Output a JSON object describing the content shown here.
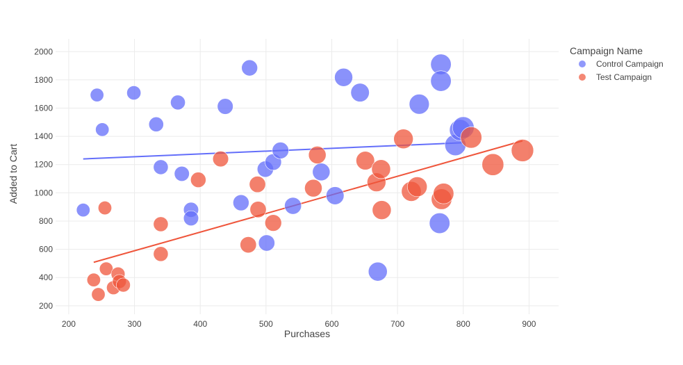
{
  "chart_data": {
    "type": "scatter",
    "xlabel": "Purchases",
    "ylabel": "Added to Cart",
    "xlim": [
      180,
      945
    ],
    "ylim": [
      140,
      2090
    ],
    "xticks": [
      200,
      300,
      400,
      500,
      600,
      700,
      800,
      900
    ],
    "yticks": [
      200,
      400,
      600,
      800,
      1000,
      1200,
      1400,
      1600,
      1800,
      2000
    ],
    "grid": true,
    "legend": {
      "title": "Campaign Name",
      "placement": "top-right"
    },
    "series": [
      {
        "name": "Control Campaign",
        "color": "#636efa",
        "trendline": {
          "x": [
            222,
            800
          ],
          "y": [
            1240,
            1355
          ]
        },
        "points": [
          {
            "x": 222,
            "y": 878,
            "size": 0.3
          },
          {
            "x": 243,
            "y": 1693,
            "size": 0.3
          },
          {
            "x": 251,
            "y": 1448,
            "size": 0.3
          },
          {
            "x": 299,
            "y": 1708,
            "size": 0.35
          },
          {
            "x": 333,
            "y": 1485,
            "size": 0.4
          },
          {
            "x": 340,
            "y": 1182,
            "size": 0.4
          },
          {
            "x": 366,
            "y": 1640,
            "size": 0.4
          },
          {
            "x": 372,
            "y": 1135,
            "size": 0.42
          },
          {
            "x": 386,
            "y": 880,
            "size": 0.42
          },
          {
            "x": 386,
            "y": 820,
            "size": 0.42
          },
          {
            "x": 438,
            "y": 1612,
            "size": 0.48
          },
          {
            "x": 462,
            "y": 930,
            "size": 0.5
          },
          {
            "x": 475,
            "y": 1885,
            "size": 0.5
          },
          {
            "x": 499,
            "y": 1168,
            "size": 0.52
          },
          {
            "x": 501,
            "y": 645,
            "size": 0.52
          },
          {
            "x": 511,
            "y": 1218,
            "size": 0.53
          },
          {
            "x": 522,
            "y": 1300,
            "size": 0.55
          },
          {
            "x": 541,
            "y": 908,
            "size": 0.57
          },
          {
            "x": 584,
            "y": 1148,
            "size": 0.62
          },
          {
            "x": 605,
            "y": 980,
            "size": 0.65
          },
          {
            "x": 618,
            "y": 1818,
            "size": 0.67
          },
          {
            "x": 643,
            "y": 1710,
            "size": 0.7
          },
          {
            "x": 670,
            "y": 442,
            "size": 0.73
          },
          {
            "x": 733,
            "y": 1628,
            "size": 0.82
          },
          {
            "x": 764,
            "y": 785,
            "size": 0.86
          },
          {
            "x": 766,
            "y": 1910,
            "size": 0.86
          },
          {
            "x": 766,
            "y": 1792,
            "size": 0.86
          },
          {
            "x": 788,
            "y": 1338,
            "size": 0.9
          },
          {
            "x": 795,
            "y": 1445,
            "size": 0.9
          },
          {
            "x": 800,
            "y": 1462,
            "size": 0.95
          }
        ]
      },
      {
        "name": "Test Campaign",
        "color": "#ef553b",
        "trendline": {
          "x": [
            238,
            890
          ],
          "y": [
            508,
            1368
          ]
        },
        "points": [
          {
            "x": 238,
            "y": 383,
            "size": 0.3
          },
          {
            "x": 245,
            "y": 280,
            "size": 0.3
          },
          {
            "x": 255,
            "y": 893,
            "size": 0.3
          },
          {
            "x": 257,
            "y": 462,
            "size": 0.3
          },
          {
            "x": 268,
            "y": 328,
            "size": 0.32
          },
          {
            "x": 275,
            "y": 425,
            "size": 0.33
          },
          {
            "x": 277,
            "y": 372,
            "size": 0.33
          },
          {
            "x": 283,
            "y": 347,
            "size": 0.34
          },
          {
            "x": 340,
            "y": 567,
            "size": 0.4
          },
          {
            "x": 340,
            "y": 778,
            "size": 0.4
          },
          {
            "x": 397,
            "y": 1092,
            "size": 0.45
          },
          {
            "x": 431,
            "y": 1240,
            "size": 0.48
          },
          {
            "x": 473,
            "y": 632,
            "size": 0.52
          },
          {
            "x": 487,
            "y": 1060,
            "size": 0.52
          },
          {
            "x": 488,
            "y": 882,
            "size": 0.52
          },
          {
            "x": 511,
            "y": 787,
            "size": 0.55
          },
          {
            "x": 572,
            "y": 1033,
            "size": 0.62
          },
          {
            "x": 578,
            "y": 1268,
            "size": 0.62
          },
          {
            "x": 651,
            "y": 1228,
            "size": 0.7
          },
          {
            "x": 668,
            "y": 1075,
            "size": 0.72
          },
          {
            "x": 675,
            "y": 1168,
            "size": 0.73
          },
          {
            "x": 676,
            "y": 878,
            "size": 0.73
          },
          {
            "x": 709,
            "y": 1382,
            "size": 0.78
          },
          {
            "x": 721,
            "y": 1010,
            "size": 0.8
          },
          {
            "x": 730,
            "y": 1043,
            "size": 0.8
          },
          {
            "x": 767,
            "y": 955,
            "size": 0.86
          },
          {
            "x": 770,
            "y": 995,
            "size": 0.86
          },
          {
            "x": 812,
            "y": 1392,
            "size": 0.92
          },
          {
            "x": 845,
            "y": 1200,
            "size": 0.96
          },
          {
            "x": 890,
            "y": 1300,
            "size": 1.0
          }
        ]
      }
    ]
  }
}
